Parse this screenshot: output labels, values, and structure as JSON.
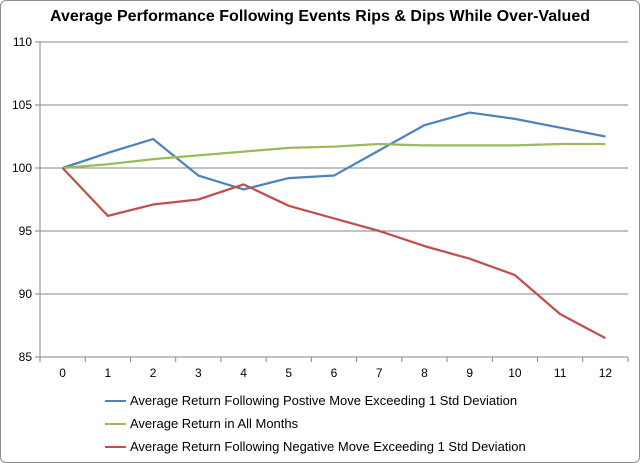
{
  "chart_data": {
    "type": "line",
    "title": "Average Performance Following Events Rips & Dips While Over-Valued",
    "xlabel": "",
    "ylabel": "",
    "x": [
      0,
      1,
      2,
      3,
      4,
      5,
      6,
      7,
      8,
      9,
      10,
      11,
      12
    ],
    "ylim": [
      85,
      110
    ],
    "yticks": [
      85,
      90,
      95,
      100,
      105,
      110
    ],
    "grid": true,
    "legend_position": "bottom",
    "series": [
      {
        "name": "Average Return Following Postive Move Exceeding 1 Std Deviation",
        "color": "#4f81bd",
        "values": [
          100,
          101.2,
          102.3,
          99.4,
          98.3,
          99.2,
          99.4,
          101.4,
          103.4,
          104.4,
          103.9,
          103.2,
          102.5
        ]
      },
      {
        "name": "Average Return in All Months",
        "color": "#9bbb59",
        "values": [
          100,
          100.3,
          100.7,
          101.0,
          101.3,
          101.6,
          101.7,
          101.9,
          101.8,
          101.8,
          101.8,
          101.9,
          101.9
        ]
      },
      {
        "name": "Average Return Following Negative Move Exceeding 1 Std Deviation",
        "color": "#c0504d",
        "values": [
          100,
          96.2,
          97.1,
          97.5,
          98.7,
          97.0,
          96.0,
          95.0,
          93.8,
          92.8,
          91.5,
          88.4,
          86.5
        ]
      }
    ]
  }
}
